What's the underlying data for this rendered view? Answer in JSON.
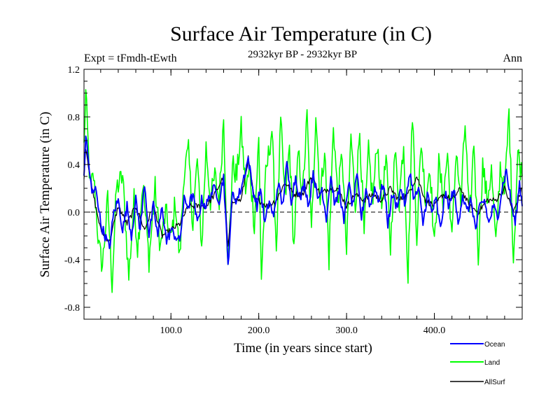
{
  "chart_data": {
    "type": "line",
    "title": "Surface Air Temperature (in C)",
    "subtitle": "2932kyr BP - 2932kyr BP",
    "left_label": "Expt = tFmdh-tEwth",
    "right_label": "Ann",
    "xlabel": "Time (in years since start)",
    "ylabel": "Surface Air Temperature (in C)",
    "xlim": [
      1,
      500
    ],
    "ylim": [
      -0.9,
      1.2
    ],
    "x_ticks": [
      100,
      200,
      300,
      400
    ],
    "x_tick_labels": [
      "100.0",
      "200.0",
      "300.0",
      "400.0"
    ],
    "y_ticks": [
      1.2,
      0.8,
      0.4,
      0.0,
      -0.4,
      -0.8
    ],
    "y_tick_labels": [
      "1.2",
      "0.8",
      "0.4",
      "0.0",
      "-0.4",
      "-0.8"
    ],
    "zero_line": "dashed",
    "legend_position": "bottom-right, below plot",
    "series": [
      {
        "name": "Land",
        "color": "#00ff00",
        "anchors": [
          [
            1,
            0.55
          ],
          [
            3,
            1.0
          ],
          [
            8,
            0.2
          ],
          [
            12,
            0.3
          ],
          [
            18,
            -0.3
          ],
          [
            22,
            -0.45
          ],
          [
            28,
            0.1
          ],
          [
            33,
            -0.6
          ],
          [
            38,
            0.2
          ],
          [
            45,
            0.3
          ],
          [
            52,
            -0.55
          ],
          [
            58,
            0.1
          ],
          [
            62,
            -0.3
          ],
          [
            68,
            0.25
          ],
          [
            75,
            -0.4
          ],
          [
            82,
            0.2
          ],
          [
            88,
            -0.3
          ],
          [
            94,
            0.0
          ],
          [
            100,
            -0.25
          ],
          [
            105,
            0.1
          ],
          [
            110,
            -0.4
          ],
          [
            115,
            0.35
          ],
          [
            120,
            0.5
          ],
          [
            125,
            -0.1
          ],
          [
            130,
            0.45
          ],
          [
            135,
            -0.3
          ],
          [
            140,
            0.55
          ],
          [
            145,
            0.1
          ],
          [
            150,
            0.3
          ],
          [
            155,
            0.1
          ],
          [
            160,
            0.8
          ],
          [
            165,
            -0.5
          ],
          [
            170,
            0.4
          ],
          [
            175,
            0.3
          ],
          [
            180,
            0.7
          ],
          [
            185,
            0.2
          ],
          [
            190,
            0.35
          ],
          [
            195,
            -0.1
          ],
          [
            200,
            0.6
          ],
          [
            203,
            -0.55
          ],
          [
            208,
            0.3
          ],
          [
            215,
            0.7
          ],
          [
            220,
            -0.3
          ],
          [
            225,
            0.75
          ],
          [
            230,
            0.1
          ],
          [
            235,
            0.55
          ],
          [
            240,
            -0.3
          ],
          [
            245,
            0.5
          ],
          [
            250,
            0.15
          ],
          [
            255,
            0.8
          ],
          [
            260,
            -0.2
          ],
          [
            265,
            0.85
          ],
          [
            270,
            0.1
          ],
          [
            275,
            0.55
          ],
          [
            280,
            -0.4
          ],
          [
            285,
            0.75
          ],
          [
            290,
            0.1
          ],
          [
            295,
            0.5
          ],
          [
            300,
            -0.35
          ],
          [
            305,
            0.65
          ],
          [
            310,
            0.05
          ],
          [
            315,
            0.7
          ],
          [
            320,
            -0.2
          ],
          [
            325,
            0.5
          ],
          [
            330,
            0.1
          ],
          [
            335,
            0.6
          ],
          [
            340,
            0.05
          ],
          [
            345,
            0.45
          ],
          [
            350,
            -0.3
          ],
          [
            355,
            0.5
          ],
          [
            360,
            0.1
          ],
          [
            365,
            0.6
          ],
          [
            370,
            -0.55
          ],
          [
            375,
            0.85
          ],
          [
            380,
            -0.2
          ],
          [
            385,
            0.6
          ],
          [
            390,
            0.1
          ],
          [
            395,
            0.4
          ],
          [
            400,
            -0.3
          ],
          [
            405,
            0.4
          ],
          [
            410,
            0.1
          ],
          [
            415,
            0.5
          ],
          [
            420,
            -0.25
          ],
          [
            425,
            0.55
          ],
          [
            430,
            0.05
          ],
          [
            435,
            0.75
          ],
          [
            440,
            -0.1
          ],
          [
            445,
            0.6
          ],
          [
            450,
            -0.35
          ],
          [
            455,
            0.4
          ],
          [
            460,
            0.1
          ],
          [
            465,
            0.35
          ],
          [
            470,
            -0.3
          ],
          [
            475,
            0.4
          ],
          [
            480,
            0.15
          ],
          [
            485,
            0.85
          ],
          [
            490,
            -0.4
          ],
          [
            495,
            0.5
          ],
          [
            500,
            0.3
          ]
        ]
      },
      {
        "name": "AllSurf",
        "color": "#000000",
        "anchors": [
          [
            1,
            0.3
          ],
          [
            3,
            0.55
          ],
          [
            10,
            0.2
          ],
          [
            20,
            -0.15
          ],
          [
            30,
            -0.25
          ],
          [
            40,
            0.05
          ],
          [
            50,
            -0.1
          ],
          [
            60,
            0.05
          ],
          [
            70,
            -0.15
          ],
          [
            80,
            0.05
          ],
          [
            90,
            -0.2
          ],
          [
            100,
            -0.15
          ],
          [
            110,
            -0.1
          ],
          [
            120,
            0.05
          ],
          [
            130,
            0.05
          ],
          [
            140,
            0.05
          ],
          [
            150,
            0.15
          ],
          [
            160,
            0.3
          ],
          [
            165,
            -0.3
          ],
          [
            170,
            0.1
          ],
          [
            180,
            0.1
          ],
          [
            188,
            0.45
          ],
          [
            195,
            0.1
          ],
          [
            200,
            0.1
          ],
          [
            210,
            0.05
          ],
          [
            220,
            0.1
          ],
          [
            230,
            0.25
          ],
          [
            240,
            0.15
          ],
          [
            250,
            0.15
          ],
          [
            260,
            0.3
          ],
          [
            270,
            0.15
          ],
          [
            280,
            0.2
          ],
          [
            290,
            0.2
          ],
          [
            300,
            0.05
          ],
          [
            310,
            0.15
          ],
          [
            320,
            0.1
          ],
          [
            330,
            0.15
          ],
          [
            340,
            0.1
          ],
          [
            350,
            0.2
          ],
          [
            360,
            0.1
          ],
          [
            370,
            0.15
          ],
          [
            380,
            0.3
          ],
          [
            390,
            0.1
          ],
          [
            400,
            0.05
          ],
          [
            410,
            0.15
          ],
          [
            420,
            0.1
          ],
          [
            430,
            0.2
          ],
          [
            440,
            0.05
          ],
          [
            450,
            0.0
          ],
          [
            460,
            0.1
          ],
          [
            470,
            0.1
          ],
          [
            480,
            0.2
          ],
          [
            490,
            0.0
          ],
          [
            500,
            0.2
          ]
        ]
      },
      {
        "name": "Ocean",
        "color": "#0000ff",
        "anchors": [
          [
            1,
            0.3
          ],
          [
            3,
            0.65
          ],
          [
            10,
            0.15
          ],
          [
            15,
            0.2
          ],
          [
            20,
            -0.1
          ],
          [
            25,
            -0.2
          ],
          [
            30,
            -0.3
          ],
          [
            35,
            0.0
          ],
          [
            40,
            0.1
          ],
          [
            45,
            -0.15
          ],
          [
            50,
            0.05
          ],
          [
            55,
            -0.2
          ],
          [
            60,
            0.1
          ],
          [
            65,
            -0.15
          ],
          [
            70,
            0.25
          ],
          [
            75,
            -0.2
          ],
          [
            80,
            0.05
          ],
          [
            85,
            -0.2
          ],
          [
            90,
            0.05
          ],
          [
            95,
            -0.25
          ],
          [
            100,
            -0.15
          ],
          [
            105,
            -0.2
          ],
          [
            110,
            -0.25
          ],
          [
            115,
            0.1
          ],
          [
            120,
            0.05
          ],
          [
            125,
            0.15
          ],
          [
            130,
            -0.1
          ],
          [
            135,
            0.1
          ],
          [
            140,
            0.05
          ],
          [
            145,
            0.15
          ],
          [
            150,
            0.2
          ],
          [
            155,
            0.1
          ],
          [
            160,
            0.3
          ],
          [
            165,
            -0.45
          ],
          [
            170,
            0.15
          ],
          [
            175,
            0.1
          ],
          [
            180,
            0.2
          ],
          [
            188,
            0.45
          ],
          [
            193,
            0.2
          ],
          [
            198,
            0.05
          ],
          [
            202,
            0.2
          ],
          [
            207,
            -0.1
          ],
          [
            212,
            0.1
          ],
          [
            217,
            -0.05
          ],
          [
            222,
            0.25
          ],
          [
            227,
            0.05
          ],
          [
            232,
            0.4
          ],
          [
            237,
            0.1
          ],
          [
            242,
            0.3
          ],
          [
            247,
            0.1
          ],
          [
            252,
            0.25
          ],
          [
            257,
            0.05
          ],
          [
            262,
            0.35
          ],
          [
            267,
            0.1
          ],
          [
            272,
            0.2
          ],
          [
            277,
            -0.05
          ],
          [
            282,
            0.3
          ],
          [
            287,
            0.05
          ],
          [
            292,
            0.2
          ],
          [
            297,
            -0.1
          ],
          [
            302,
            0.25
          ],
          [
            307,
            0.05
          ],
          [
            312,
            0.3
          ],
          [
            317,
            -0.05
          ],
          [
            322,
            0.2
          ],
          [
            327,
            0.05
          ],
          [
            332,
            0.2
          ],
          [
            337,
            0.1
          ],
          [
            342,
            0.25
          ],
          [
            347,
            -0.1
          ],
          [
            352,
            0.15
          ],
          [
            357,
            0.05
          ],
          [
            362,
            0.2
          ],
          [
            367,
            0.05
          ],
          [
            372,
            0.35
          ],
          [
            377,
            0.1
          ],
          [
            382,
            0.2
          ],
          [
            387,
            -0.1
          ],
          [
            392,
            0.15
          ],
          [
            397,
            0.0
          ],
          [
            402,
            0.1
          ],
          [
            407,
            -0.15
          ],
          [
            412,
            0.15
          ],
          [
            417,
            0.05
          ],
          [
            422,
            0.2
          ],
          [
            427,
            -0.1
          ],
          [
            432,
            0.15
          ],
          [
            437,
            0.0
          ],
          [
            442,
            0.1
          ],
          [
            447,
            -0.15
          ],
          [
            452,
            0.05
          ],
          [
            457,
            0.1
          ],
          [
            462,
            -0.1
          ],
          [
            467,
            0.05
          ],
          [
            472,
            -0.05
          ],
          [
            477,
            0.2
          ],
          [
            482,
            0.35
          ],
          [
            487,
            0.1
          ],
          [
            492,
            -0.1
          ],
          [
            497,
            0.25
          ],
          [
            500,
            0.05
          ]
        ]
      }
    ]
  },
  "legend": {
    "ocean": {
      "label": "Ocean",
      "color": "#0000ff"
    },
    "land": {
      "label": "Land",
      "color": "#00ff00"
    },
    "allsurf": {
      "label": "AllSurf",
      "color": "#000000"
    }
  }
}
